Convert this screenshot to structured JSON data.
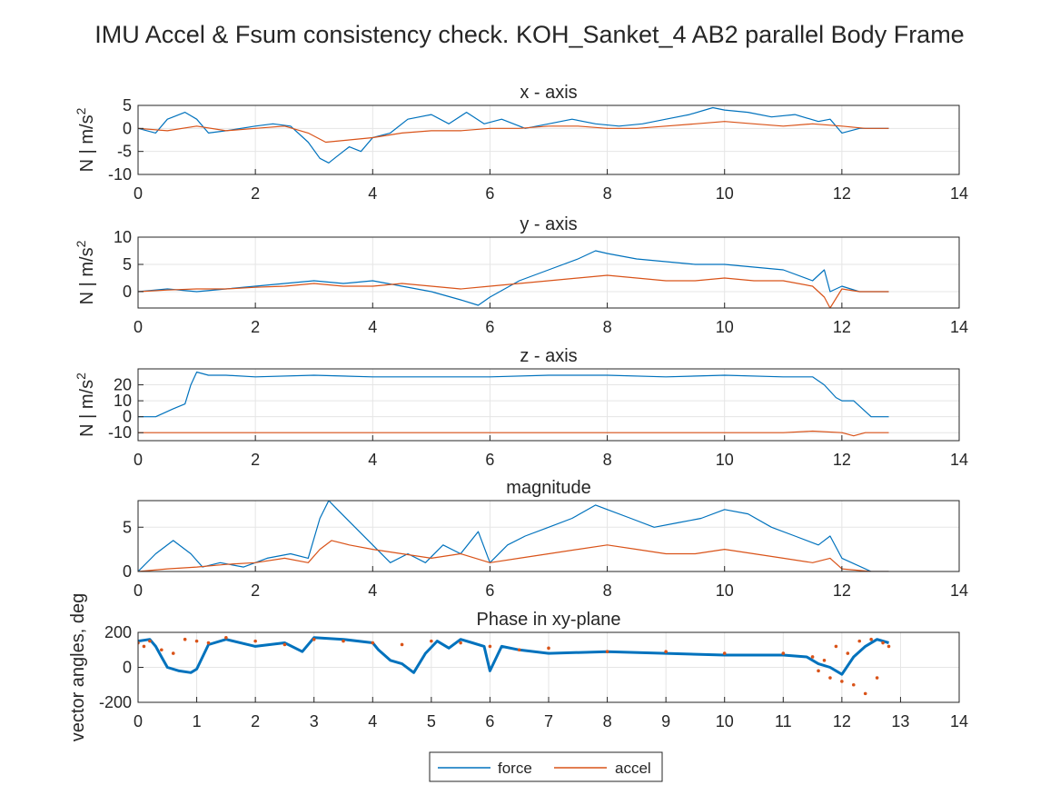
{
  "figure": {
    "title": "IMU Accel & Fsum consistency check. KOH_Sanket_4     AB2     parallel  Body Frame",
    "colors": {
      "force": "#0072BD",
      "accel": "#D95319",
      "grid": "#e5e5e5",
      "axis": "#262626"
    }
  },
  "legend": {
    "position": "bottom-center",
    "items": [
      "force",
      "accel"
    ]
  },
  "chart_data": [
    {
      "type": "line",
      "title": "x - axis",
      "ylabel": "N | m/s",
      "ylabel_sup": "2",
      "xlim": [
        0,
        14
      ],
      "ylim": [
        -10,
        5
      ],
      "xticks": [
        0,
        2,
        4,
        6,
        8,
        10,
        12,
        14
      ],
      "yticks": [
        -10,
        -5,
        0,
        5
      ],
      "grid": true,
      "series": [
        {
          "name": "force",
          "style": "line",
          "x": [
            0,
            0.3,
            0.5,
            0.8,
            1.0,
            1.2,
            1.5,
            2.0,
            2.3,
            2.6,
            2.9,
            3.1,
            3.25,
            3.4,
            3.6,
            3.8,
            4.0,
            4.3,
            4.6,
            5.0,
            5.3,
            5.6,
            5.9,
            6.2,
            6.6,
            7.0,
            7.4,
            7.8,
            8.2,
            8.6,
            9.0,
            9.4,
            9.8,
            10.0,
            10.4,
            10.8,
            11.2,
            11.6,
            11.8,
            12.0,
            12.3,
            12.8
          ],
          "values": [
            0,
            -1,
            2,
            3.5,
            2,
            -1,
            -0.5,
            0.5,
            1,
            0.5,
            -3,
            -6.5,
            -7.5,
            -6,
            -4,
            -5,
            -2,
            -1,
            2,
            3,
            1,
            3.5,
            1,
            2,
            0,
            1,
            2,
            1,
            0.5,
            1,
            2,
            3,
            4.5,
            4,
            3.5,
            2.5,
            3,
            1.5,
            2,
            -1,
            0,
            0
          ]
        },
        {
          "name": "accel",
          "style": "line",
          "x": [
            0,
            0.5,
            1.0,
            1.5,
            2.0,
            2.5,
            2.9,
            3.2,
            3.6,
            4.0,
            4.5,
            5.0,
            5.5,
            6.0,
            6.5,
            7.0,
            7.5,
            8.0,
            8.5,
            9.0,
            9.5,
            10.0,
            10.5,
            11.0,
            11.5,
            12.0,
            12.4,
            12.8
          ],
          "values": [
            0,
            -0.5,
            0.5,
            -0.5,
            0,
            0.5,
            -1,
            -3,
            -2.5,
            -2,
            -1,
            -0.5,
            -0.5,
            0,
            0,
            0.5,
            0.5,
            0,
            0,
            0.5,
            1,
            1.5,
            1,
            0.5,
            1,
            0.5,
            0,
            0
          ]
        }
      ]
    },
    {
      "type": "line",
      "title": "y - axis",
      "ylabel": "N | m/s",
      "ylabel_sup": "2",
      "xlim": [
        0,
        14
      ],
      "ylim": [
        -3,
        10
      ],
      "xticks": [
        0,
        2,
        4,
        6,
        8,
        10,
        12,
        14
      ],
      "yticks": [
        0,
        5,
        10
      ],
      "grid": true,
      "series": [
        {
          "name": "force",
          "style": "line",
          "x": [
            0,
            0.5,
            1.0,
            1.5,
            2.0,
            2.5,
            3.0,
            3.5,
            4.0,
            4.5,
            5.0,
            5.5,
            5.8,
            6.0,
            6.5,
            7.0,
            7.5,
            7.8,
            8.0,
            8.5,
            9.0,
            9.5,
            10.0,
            10.5,
            11.0,
            11.5,
            11.7,
            11.8,
            12.0,
            12.3,
            12.8
          ],
          "values": [
            0,
            0.5,
            0,
            0.5,
            1,
            1.5,
            2,
            1.5,
            2,
            1,
            0,
            -1.5,
            -2.5,
            -1,
            2,
            4,
            6,
            7.5,
            7,
            6,
            5.5,
            5,
            5,
            4.5,
            4,
            2,
            4,
            0,
            1,
            0,
            0
          ]
        },
        {
          "name": "accel",
          "style": "line",
          "x": [
            0,
            0.5,
            1.0,
            1.5,
            2.0,
            2.5,
            3.0,
            3.5,
            4.0,
            4.5,
            5.0,
            5.5,
            6.0,
            6.5,
            7.0,
            7.5,
            8.0,
            8.5,
            9.0,
            9.5,
            10.0,
            10.5,
            11.0,
            11.5,
            11.7,
            11.8,
            12.0,
            12.3,
            12.8
          ],
          "values": [
            0,
            0.3,
            0.5,
            0.5,
            0.8,
            1,
            1.5,
            1,
            1,
            1.5,
            1,
            0.5,
            1,
            1.5,
            2,
            2.5,
            3,
            2.5,
            2,
            2,
            2.5,
            2,
            2,
            1,
            -1,
            -3,
            0.5,
            0,
            0
          ]
        }
      ]
    },
    {
      "type": "line",
      "title": "z - axis",
      "ylabel": "N | m/s",
      "ylabel_sup": "2",
      "xlim": [
        0,
        14
      ],
      "ylim": [
        -15,
        30
      ],
      "xticks": [
        0,
        2,
        4,
        6,
        8,
        10,
        12,
        14
      ],
      "yticks": [
        -10,
        0,
        10,
        20
      ],
      "grid": true,
      "series": [
        {
          "name": "force",
          "style": "line",
          "x": [
            0,
            0.3,
            0.6,
            0.8,
            0.9,
            1.0,
            1.2,
            1.5,
            2.0,
            3.0,
            4.0,
            5.0,
            6.0,
            7.0,
            8.0,
            9.0,
            10.0,
            11.0,
            11.5,
            11.7,
            11.9,
            12.0,
            12.2,
            12.5,
            12.8
          ],
          "values": [
            0,
            0,
            5,
            8,
            20,
            28,
            26,
            26,
            25,
            26,
            25,
            25,
            25,
            26,
            26,
            25,
            26,
            25,
            25,
            20,
            12,
            10,
            10,
            0,
            0
          ]
        },
        {
          "name": "accel",
          "style": "line",
          "x": [
            0,
            1,
            2,
            3,
            4,
            5,
            6,
            7,
            8,
            9,
            10,
            11,
            11.5,
            12,
            12.2,
            12.4,
            12.8
          ],
          "values": [
            -10,
            -10,
            -10,
            -10,
            -10,
            -10,
            -10,
            -10,
            -10,
            -10,
            -10,
            -10,
            -9,
            -10,
            -12,
            -10,
            -10
          ]
        }
      ]
    },
    {
      "type": "line",
      "title": "magnitude",
      "ylabel": "",
      "xlim": [
        0,
        14
      ],
      "ylim": [
        0,
        8
      ],
      "xticks": [
        0,
        2,
        4,
        6,
        8,
        10,
        12,
        14
      ],
      "yticks": [
        0,
        5
      ],
      "grid": true,
      "series": [
        {
          "name": "force",
          "style": "line",
          "x": [
            0,
            0.3,
            0.6,
            0.9,
            1.1,
            1.4,
            1.8,
            2.2,
            2.6,
            2.9,
            3.1,
            3.25,
            3.4,
            3.7,
            4.0,
            4.3,
            4.6,
            4.9,
            5.2,
            5.5,
            5.8,
            6.0,
            6.3,
            6.6,
            7.0,
            7.4,
            7.8,
            8.0,
            8.4,
            8.8,
            9.2,
            9.6,
            10.0,
            10.4,
            10.8,
            11.2,
            11.6,
            11.8,
            12.0,
            12.5,
            12.8
          ],
          "values": [
            0,
            2,
            3.5,
            2,
            0.5,
            1,
            0.5,
            1.5,
            2,
            1.5,
            6,
            8,
            7,
            5,
            3,
            1,
            2,
            1,
            3,
            2,
            4.5,
            1,
            3,
            4,
            5,
            6,
            7.5,
            7,
            6,
            5,
            5.5,
            6,
            7,
            6.5,
            5,
            4,
            3,
            4,
            1.5,
            0,
            0
          ]
        },
        {
          "name": "accel",
          "style": "line",
          "x": [
            0,
            0.5,
            1.0,
            1.5,
            2.0,
            2.5,
            2.9,
            3.1,
            3.3,
            3.6,
            4.0,
            4.5,
            5.0,
            5.5,
            6.0,
            6.5,
            7.0,
            7.5,
            8.0,
            8.5,
            9.0,
            9.5,
            10.0,
            10.5,
            11.0,
            11.5,
            11.8,
            12.0,
            12.5,
            12.8
          ],
          "values": [
            0,
            0.3,
            0.5,
            0.8,
            1,
            1.5,
            1,
            2.5,
            3.5,
            3,
            2.5,
            2,
            1.5,
            2,
            1,
            1.5,
            2,
            2.5,
            3,
            2.5,
            2,
            2,
            2.5,
            2,
            1.5,
            1,
            1.5,
            0.3,
            0,
            0
          ]
        }
      ]
    },
    {
      "type": "scatter",
      "title": "Phase in xy-plane",
      "ylabel": "vector angles, deg",
      "xlim": [
        0,
        14
      ],
      "ylim": [
        -200,
        200
      ],
      "xticks": [
        0,
        1,
        2,
        3,
        4,
        5,
        6,
        7,
        8,
        9,
        10,
        11,
        12,
        13,
        14
      ],
      "yticks": [
        -200,
        0,
        200
      ],
      "grid": true,
      "series": [
        {
          "name": "force",
          "style": "thick",
          "x": [
            0,
            0.2,
            0.3,
            0.4,
            0.5,
            0.7,
            0.9,
            1.0,
            1.2,
            1.5,
            2.0,
            2.5,
            2.8,
            3.0,
            3.5,
            4.0,
            4.1,
            4.3,
            4.5,
            4.7,
            4.9,
            5.1,
            5.3,
            5.5,
            5.7,
            5.9,
            6.0,
            6.2,
            6.5,
            7.0,
            8.0,
            9.0,
            10.0,
            11.0,
            11.4,
            11.6,
            11.8,
            12.0,
            12.2,
            12.4,
            12.6,
            12.8
          ],
          "values": [
            150,
            160,
            120,
            60,
            0,
            -20,
            -30,
            -10,
            130,
            160,
            120,
            140,
            90,
            170,
            160,
            140,
            100,
            40,
            20,
            -30,
            80,
            150,
            110,
            160,
            140,
            120,
            -20,
            120,
            100,
            80,
            90,
            80,
            70,
            70,
            60,
            20,
            0,
            -40,
            60,
            120,
            160,
            140
          ]
        },
        {
          "name": "accel",
          "style": "dots",
          "x": [
            0,
            0.1,
            0.2,
            0.4,
            0.6,
            0.8,
            1.0,
            1.2,
            1.5,
            2.0,
            2.5,
            3.0,
            3.5,
            4.0,
            4.5,
            5.0,
            5.5,
            6.0,
            6.5,
            7.0,
            8.0,
            9.0,
            10.0,
            11.0,
            11.5,
            11.6,
            11.7,
            11.8,
            11.9,
            12.0,
            12.1,
            12.2,
            12.3,
            12.4,
            12.5,
            12.6,
            12.7,
            12.8
          ],
          "values": [
            140,
            120,
            150,
            100,
            80,
            160,
            150,
            140,
            170,
            150,
            130,
            160,
            150,
            140,
            130,
            150,
            140,
            120,
            100,
            110,
            90,
            90,
            80,
            80,
            60,
            -20,
            40,
            -60,
            120,
            -80,
            80,
            -100,
            150,
            -150,
            160,
            -60,
            140,
            120
          ]
        }
      ]
    }
  ]
}
